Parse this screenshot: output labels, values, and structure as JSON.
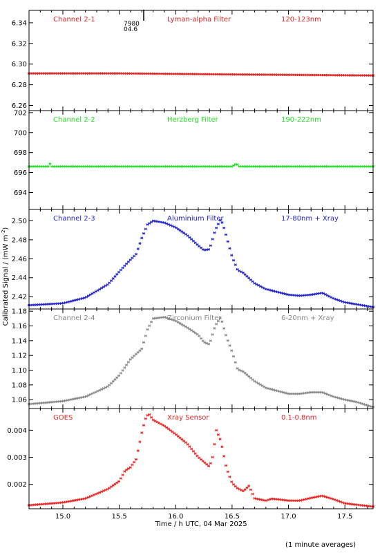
{
  "figure": {
    "ylabel": "Calibrated Signal / (mW m",
    "ylabel_sup": "-2",
    "ylabel_close": ")",
    "xlabel": "Time / h UTC, 04 Mar 2025",
    "footnote": "(1 minute averages)",
    "marker_label_1": "7980",
    "marker_label_2": "04.6"
  },
  "chart_data": [
    {
      "type": "scatter",
      "channel": "Channel 2-1",
      "filter": "Lyman-alpha Filter",
      "band": "120-123nm",
      "color": "#dd2222",
      "xlim": [
        14.7,
        17.75
      ],
      "ylim": [
        6.255,
        6.352
      ],
      "yticks": [
        6.26,
        6.28,
        6.3,
        6.32,
        6.34
      ],
      "ytick_labels": [
        "6.26",
        "6.28",
        "6.30",
        "6.32",
        "6.34"
      ],
      "x": [
        14.7,
        15.5,
        16.5,
        17.75
      ],
      "y": [
        6.291,
        6.291,
        6.29,
        6.289
      ]
    },
    {
      "type": "scatter",
      "channel": "Channel 2-2",
      "filter": "Herzberg Filter",
      "band": "190-222nm",
      "color": "#22dd22",
      "xlim": [
        14.7,
        17.75
      ],
      "ylim": [
        692.3,
        702.2
      ],
      "yticks": [
        694,
        696,
        698,
        700,
        702
      ],
      "ytick_labels": [
        "694",
        "696",
        "698",
        "700",
        "702"
      ],
      "x": [
        14.7,
        14.87,
        14.88,
        14.9,
        16.5,
        16.54,
        16.56,
        17.75
      ],
      "y": [
        696.6,
        696.6,
        697.0,
        696.6,
        696.6,
        696.9,
        696.6,
        696.6
      ]
    },
    {
      "type": "scatter",
      "channel": "Channel 2-3",
      "filter": "Aluminium Filter",
      "band": "17-80nm + Xray",
      "color": "#2222cc",
      "xlim": [
        14.7,
        17.75
      ],
      "ylim": [
        2.407,
        2.512
      ],
      "yticks": [
        2.42,
        2.44,
        2.46,
        2.48,
        2.5
      ],
      "ytick_labels": [
        "2.42",
        "2.44",
        "2.46",
        "2.48",
        "2.50"
      ],
      "x": [
        14.7,
        15.0,
        15.2,
        15.4,
        15.55,
        15.65,
        15.7,
        15.75,
        15.8,
        15.9,
        16.0,
        16.1,
        16.2,
        16.25,
        16.3,
        16.35,
        16.4,
        16.43,
        16.5,
        16.55,
        16.6,
        16.7,
        16.8,
        16.9,
        17.0,
        17.1,
        17.2,
        17.3,
        17.4,
        17.5,
        17.6,
        17.75
      ],
      "y": [
        2.411,
        2.413,
        2.419,
        2.433,
        2.453,
        2.465,
        2.482,
        2.496,
        2.5,
        2.498,
        2.493,
        2.485,
        2.474,
        2.469,
        2.47,
        2.49,
        2.502,
        2.492,
        2.462,
        2.448,
        2.445,
        2.434,
        2.428,
        2.425,
        2.422,
        2.421,
        2.422,
        2.424,
        2.418,
        2.414,
        2.412,
        2.409
      ]
    },
    {
      "type": "scatter",
      "channel": "Channel 2-4",
      "filter": "Zirconium Filter",
      "band": "6-20nm + Xray",
      "color": "#888888",
      "xlim": [
        14.7,
        17.75
      ],
      "ylim": [
        1.048,
        1.183
      ],
      "yticks": [
        1.06,
        1.08,
        1.1,
        1.12,
        1.14,
        1.16,
        1.18
      ],
      "ytick_labels": [
        "1.06",
        "1.08",
        "1.10",
        "1.12",
        "1.14",
        "1.16",
        "1.18"
      ],
      "x": [
        14.7,
        15.0,
        15.2,
        15.4,
        15.5,
        15.6,
        15.7,
        15.75,
        15.8,
        15.9,
        16.0,
        16.1,
        16.2,
        16.25,
        16.3,
        16.35,
        16.4,
        16.45,
        16.5,
        16.55,
        16.6,
        16.7,
        16.8,
        16.9,
        17.0,
        17.1,
        17.2,
        17.3,
        17.4,
        17.5,
        17.6,
        17.75
      ],
      "y": [
        1.054,
        1.058,
        1.064,
        1.078,
        1.093,
        1.115,
        1.129,
        1.155,
        1.17,
        1.172,
        1.167,
        1.158,
        1.148,
        1.138,
        1.135,
        1.16,
        1.172,
        1.145,
        1.125,
        1.101,
        1.098,
        1.085,
        1.076,
        1.072,
        1.068,
        1.068,
        1.07,
        1.07,
        1.064,
        1.06,
        1.057,
        1.05
      ]
    },
    {
      "type": "scatter",
      "channel": "GOES",
      "filter": "Xray Sensor",
      "band": "0.1-0.8nm",
      "color": "#ee2222",
      "xlim": [
        14.7,
        17.75
      ],
      "ylim": [
        0.0011,
        0.0048
      ],
      "yticks": [
        0.002,
        0.003,
        0.004
      ],
      "ytick_labels": [
        "0.002",
        "0.003",
        "0.004"
      ],
      "xticks": [
        15.0,
        15.5,
        16.0,
        16.5,
        17.0,
        17.5
      ],
      "xtick_labels": [
        "15.0",
        "15.5",
        "16.0",
        "16.5",
        "17.0",
        "17.5"
      ],
      "x": [
        14.7,
        15.0,
        15.2,
        15.4,
        15.5,
        15.55,
        15.6,
        15.65,
        15.7,
        15.73,
        15.76,
        15.8,
        15.9,
        16.0,
        16.1,
        16.2,
        16.3,
        16.33,
        16.36,
        16.4,
        16.45,
        16.5,
        16.55,
        16.6,
        16.65,
        16.7,
        16.8,
        16.85,
        16.9,
        17.0,
        17.1,
        17.2,
        17.3,
        17.4,
        17.5,
        17.6,
        17.75
      ],
      "y": [
        0.00123,
        0.00133,
        0.00148,
        0.00183,
        0.00212,
        0.0025,
        0.00263,
        0.00293,
        0.00391,
        0.0044,
        0.00462,
        0.00438,
        0.00416,
        0.00385,
        0.00351,
        0.00301,
        0.00265,
        0.00305,
        0.004,
        0.00362,
        0.0026,
        0.00205,
        0.00185,
        0.00175,
        0.00195,
        0.00148,
        0.0014,
        0.00147,
        0.00145,
        0.0014,
        0.0014,
        0.0015,
        0.00158,
        0.00145,
        0.0013,
        0.00125,
        0.00118
      ]
    }
  ]
}
